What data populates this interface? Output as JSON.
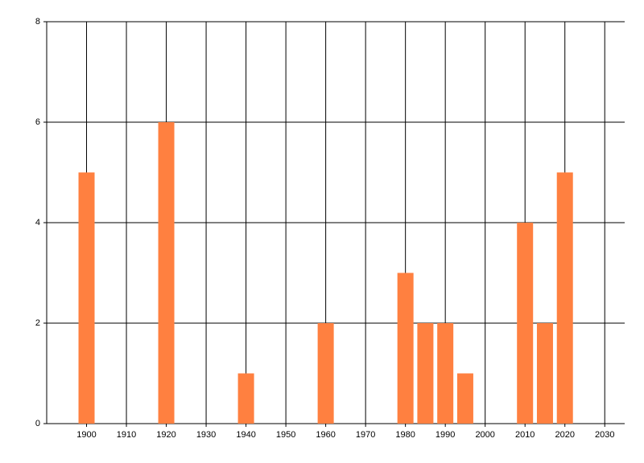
{
  "chart_data": {
    "type": "bar",
    "x": [
      1900,
      1920,
      1940,
      1960,
      1980,
      1985,
      1990,
      1995,
      2010,
      2015,
      2020
    ],
    "values": [
      5,
      6,
      1,
      2,
      3,
      2,
      2,
      1,
      4,
      2,
      5
    ],
    "color": "#ff8040",
    "xlim": [
      1890,
      2035
    ],
    "xticks": [
      1900,
      1910,
      1920,
      1930,
      1940,
      1950,
      1960,
      1970,
      1980,
      1990,
      2000,
      2010,
      2020,
      2030
    ],
    "ylim": [
      0,
      8
    ],
    "yticks": [
      0,
      2,
      4,
      6,
      8
    ],
    "grid": true
  }
}
